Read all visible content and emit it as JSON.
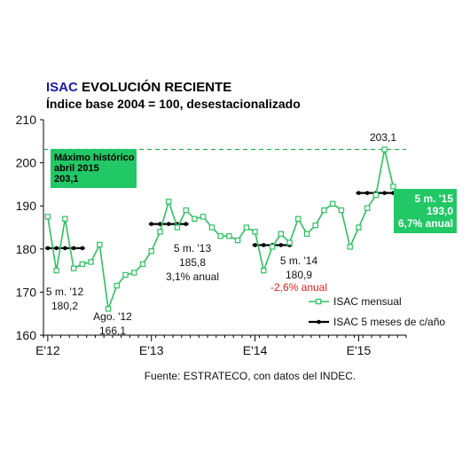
{
  "title": {
    "brand": "ISAC",
    "rest": " EVOLUCIÓN RECIENTE",
    "subtitle": "Índice base 2004 = 100, desestacionalizado"
  },
  "colors": {
    "brand": "#1a1aa8",
    "series": "#2fc061",
    "marker_fill": "#ffffff",
    "moving_avg": "#000000",
    "max_line": "#27b157",
    "box_fill": "#22c766",
    "negative": "#e0201c"
  },
  "source": "Fuente: ESTRATECO, con datos del INDEC.",
  "chart_data": {
    "type": "line",
    "ylim": [
      160,
      210
    ],
    "yticks": [
      160,
      170,
      180,
      190,
      200,
      210
    ],
    "xticks": [
      {
        "label": "E'12",
        "month": "2012-01"
      },
      {
        "label": "E'13",
        "month": "2013-01"
      },
      {
        "label": "E'14",
        "month": "2014-01"
      },
      {
        "label": "E'15",
        "month": "2015-01"
      }
    ],
    "grid": false,
    "legend_position": "bottom-right",
    "series": [
      {
        "name": "ISAC mensual",
        "style": "line-markers",
        "points": [
          [
            "2012-01",
            187.5
          ],
          [
            "2012-02",
            175.0
          ],
          [
            "2012-03",
            187.0
          ],
          [
            "2012-04",
            175.5
          ],
          [
            "2012-05",
            176.5
          ],
          [
            "2012-06",
            177.0
          ],
          [
            "2012-07",
            181.0
          ],
          [
            "2012-08",
            166.1
          ],
          [
            "2012-09",
            171.5
          ],
          [
            "2012-10",
            174.0
          ],
          [
            "2012-11",
            174.5
          ],
          [
            "2012-12",
            176.5
          ],
          [
            "2013-01",
            179.5
          ],
          [
            "2013-02",
            184.0
          ],
          [
            "2013-03",
            191.0
          ],
          [
            "2013-04",
            185.0
          ],
          [
            "2013-05",
            189.0
          ],
          [
            "2013-06",
            187.0
          ],
          [
            "2013-07",
            187.5
          ],
          [
            "2013-08",
            185.0
          ],
          [
            "2013-09",
            183.0
          ],
          [
            "2013-10",
            183.0
          ],
          [
            "2013-11",
            182.0
          ],
          [
            "2013-12",
            185.0
          ],
          [
            "2014-01",
            184.0
          ],
          [
            "2014-02",
            175.0
          ],
          [
            "2014-03",
            180.5
          ],
          [
            "2014-04",
            183.5
          ],
          [
            "2014-05",
            181.5
          ],
          [
            "2014-06",
            187.0
          ],
          [
            "2014-07",
            183.5
          ],
          [
            "2014-08",
            185.5
          ],
          [
            "2014-09",
            189.0
          ],
          [
            "2014-10",
            190.5
          ],
          [
            "2014-11",
            189.0
          ],
          [
            "2014-12",
            180.5
          ],
          [
            "2015-01",
            185.0
          ],
          [
            "2015-02",
            189.5
          ],
          [
            "2015-03",
            192.5
          ],
          [
            "2015-04",
            203.1
          ],
          [
            "2015-05",
            194.5
          ]
        ]
      },
      {
        "name": "ISAC 5 meses de c/año",
        "style": "segments",
        "segments": [
          {
            "from": "2012-01",
            "to": "2012-05",
            "value": 180.2
          },
          {
            "from": "2013-01",
            "to": "2013-05",
            "value": 185.8
          },
          {
            "from": "2014-01",
            "to": "2014-05",
            "value": 180.9
          },
          {
            "from": "2015-01",
            "to": "2015-05",
            "value": 193.0
          }
        ]
      }
    ],
    "reference_line": {
      "value": 203.1,
      "style": "dashed"
    },
    "annotations": [
      {
        "id": "ann-2012",
        "lines": [
          "5 m. '12",
          "180,2"
        ]
      },
      {
        "id": "ann-ago12",
        "lines": [
          "Ago. '12",
          "166,1"
        ]
      },
      {
        "id": "ann-2013",
        "lines": [
          "5 m. '13",
          "185,8",
          "3,1% anual"
        ]
      },
      {
        "id": "ann-2014",
        "lines": [
          "5 m. '14",
          "180,9"
        ],
        "extra": "-2,6% anual"
      },
      {
        "id": "ann-peak",
        "lines": [
          "203,1"
        ]
      }
    ],
    "max_box": {
      "lines": [
        "Máximo histórico",
        "abril 2015",
        "203,1"
      ]
    },
    "current_box": {
      "lines": [
        "5 m. '15",
        "193,0",
        "6,7% anual"
      ]
    }
  }
}
